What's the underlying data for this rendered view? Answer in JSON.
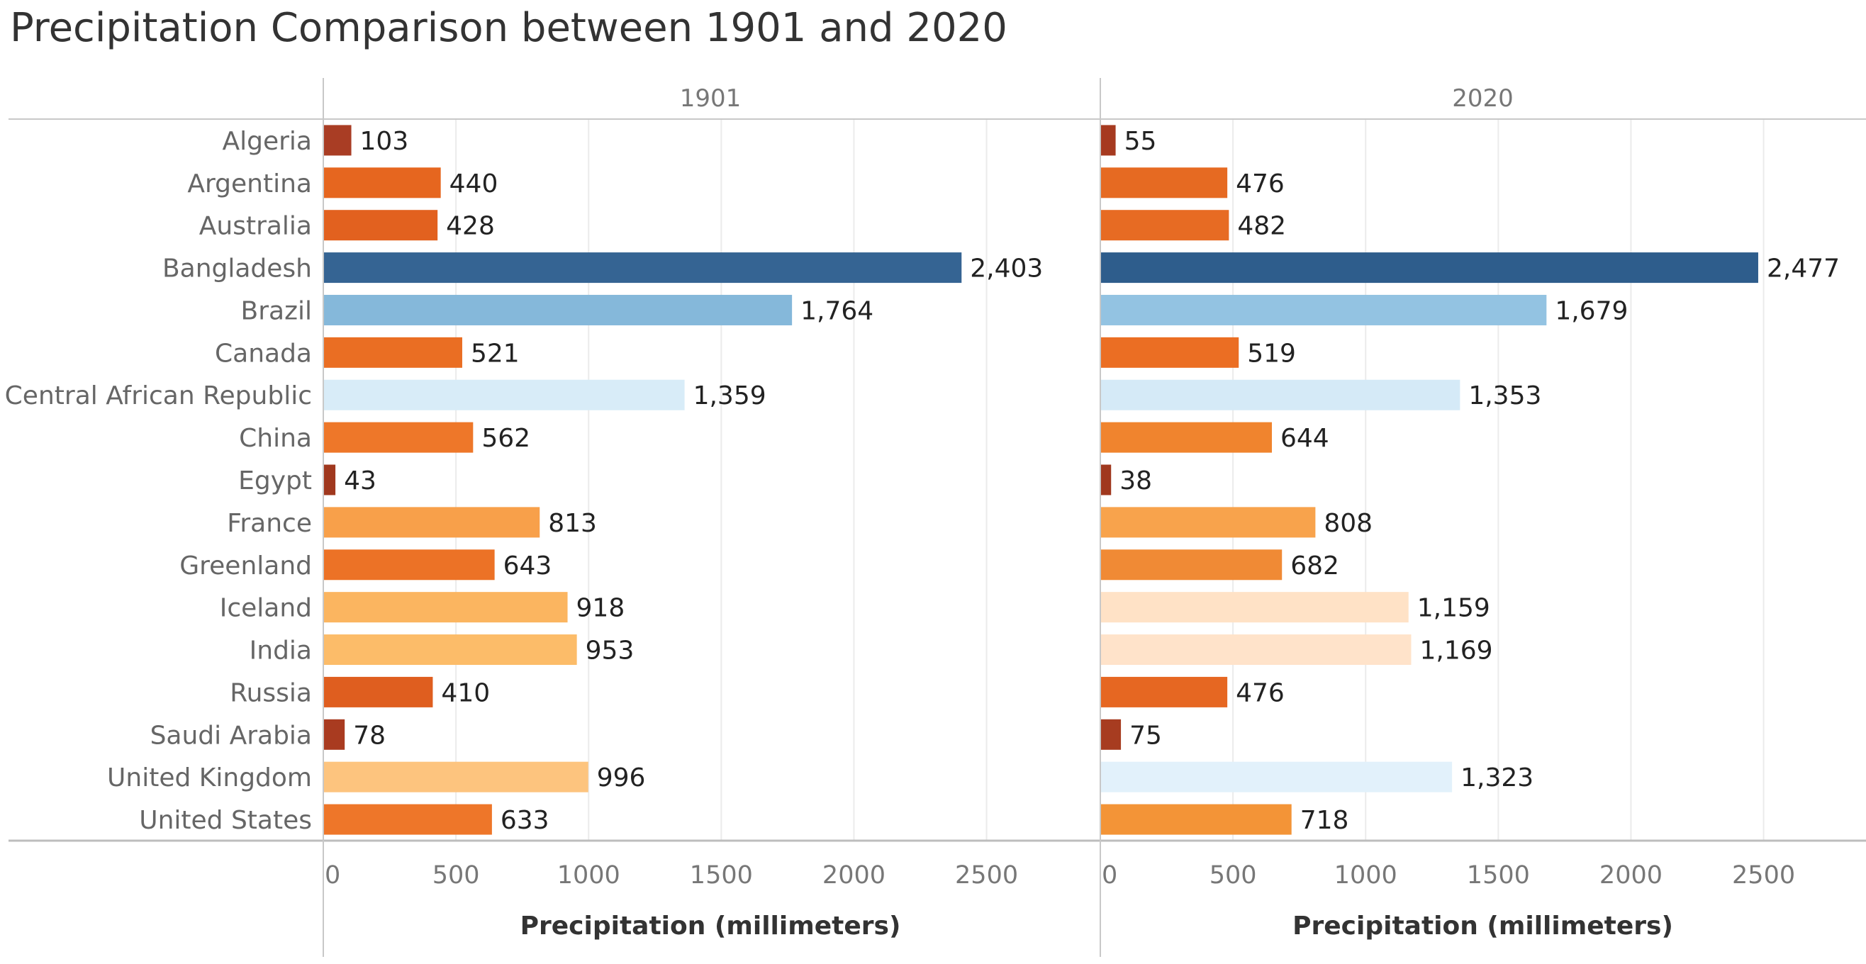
{
  "chart_data": {
    "type": "bar",
    "orientation": "horizontal",
    "title": "Precipitation Comparison between 1901 and 2020",
    "xlabel": "Precipitation (millimeters)",
    "ylabel": "",
    "xlim": [
      0,
      2800
    ],
    "x_ticks": [
      0,
      500,
      1000,
      1500,
      2000,
      2500
    ],
    "grid": true,
    "legend": "none",
    "categories": [
      "Algeria",
      "Argentina",
      "Australia",
      "Bangladesh",
      "Brazil",
      "Canada",
      "Central African Republic",
      "China",
      "Egypt",
      "France",
      "Greenland",
      "Iceland",
      "India",
      "Russia",
      "Saudi Arabia",
      "United Kingdom",
      "United States"
    ],
    "series": [
      {
        "panel": "1901",
        "values": [
          103,
          440,
          428,
          2403,
          1764,
          521,
          1359,
          562,
          43,
          813,
          643,
          918,
          953,
          410,
          78,
          996,
          633
        ],
        "labels": [
          "103",
          "440",
          "428",
          "2,403",
          "1,764",
          "521",
          "1,359",
          "562",
          "43",
          "813",
          "643",
          "918",
          "953",
          "410",
          "78",
          "996",
          "633"
        ],
        "colors": [
          "#A93D24",
          "#E6661F",
          "#E2611F",
          "#356493",
          "#85B8DA",
          "#EA6E23",
          "#D8ECF8",
          "#EE7729",
          "#A0381E",
          "#F8A04A",
          "#EC7226",
          "#FBB560",
          "#FCBC69",
          "#DF5E1F",
          "#A93B20",
          "#FDC47E",
          "#EE7629"
        ]
      },
      {
        "panel": "2020",
        "values": [
          55,
          476,
          482,
          2477,
          1679,
          519,
          1353,
          644,
          38,
          808,
          682,
          1159,
          1169,
          476,
          75,
          1323,
          718
        ],
        "labels": [
          "55",
          "476",
          "482",
          "2,477",
          "1,679",
          "519",
          "1,353",
          "644",
          "38",
          "808",
          "682",
          "1,159",
          "1,169",
          "476",
          "75",
          "1,323",
          "718"
        ],
        "colors": [
          "#A63A20",
          "#E66A22",
          "#E76B23",
          "#2E5D8C",
          "#93C3E2",
          "#EB6E23",
          "#D5EAF7",
          "#F0842E",
          "#A0381E",
          "#F8A34C",
          "#F08A35",
          "#FFE2C6",
          "#FFE3CA",
          "#E66722",
          "#A73C20",
          "#E2F1FB",
          "#F39437"
        ]
      }
    ]
  }
}
